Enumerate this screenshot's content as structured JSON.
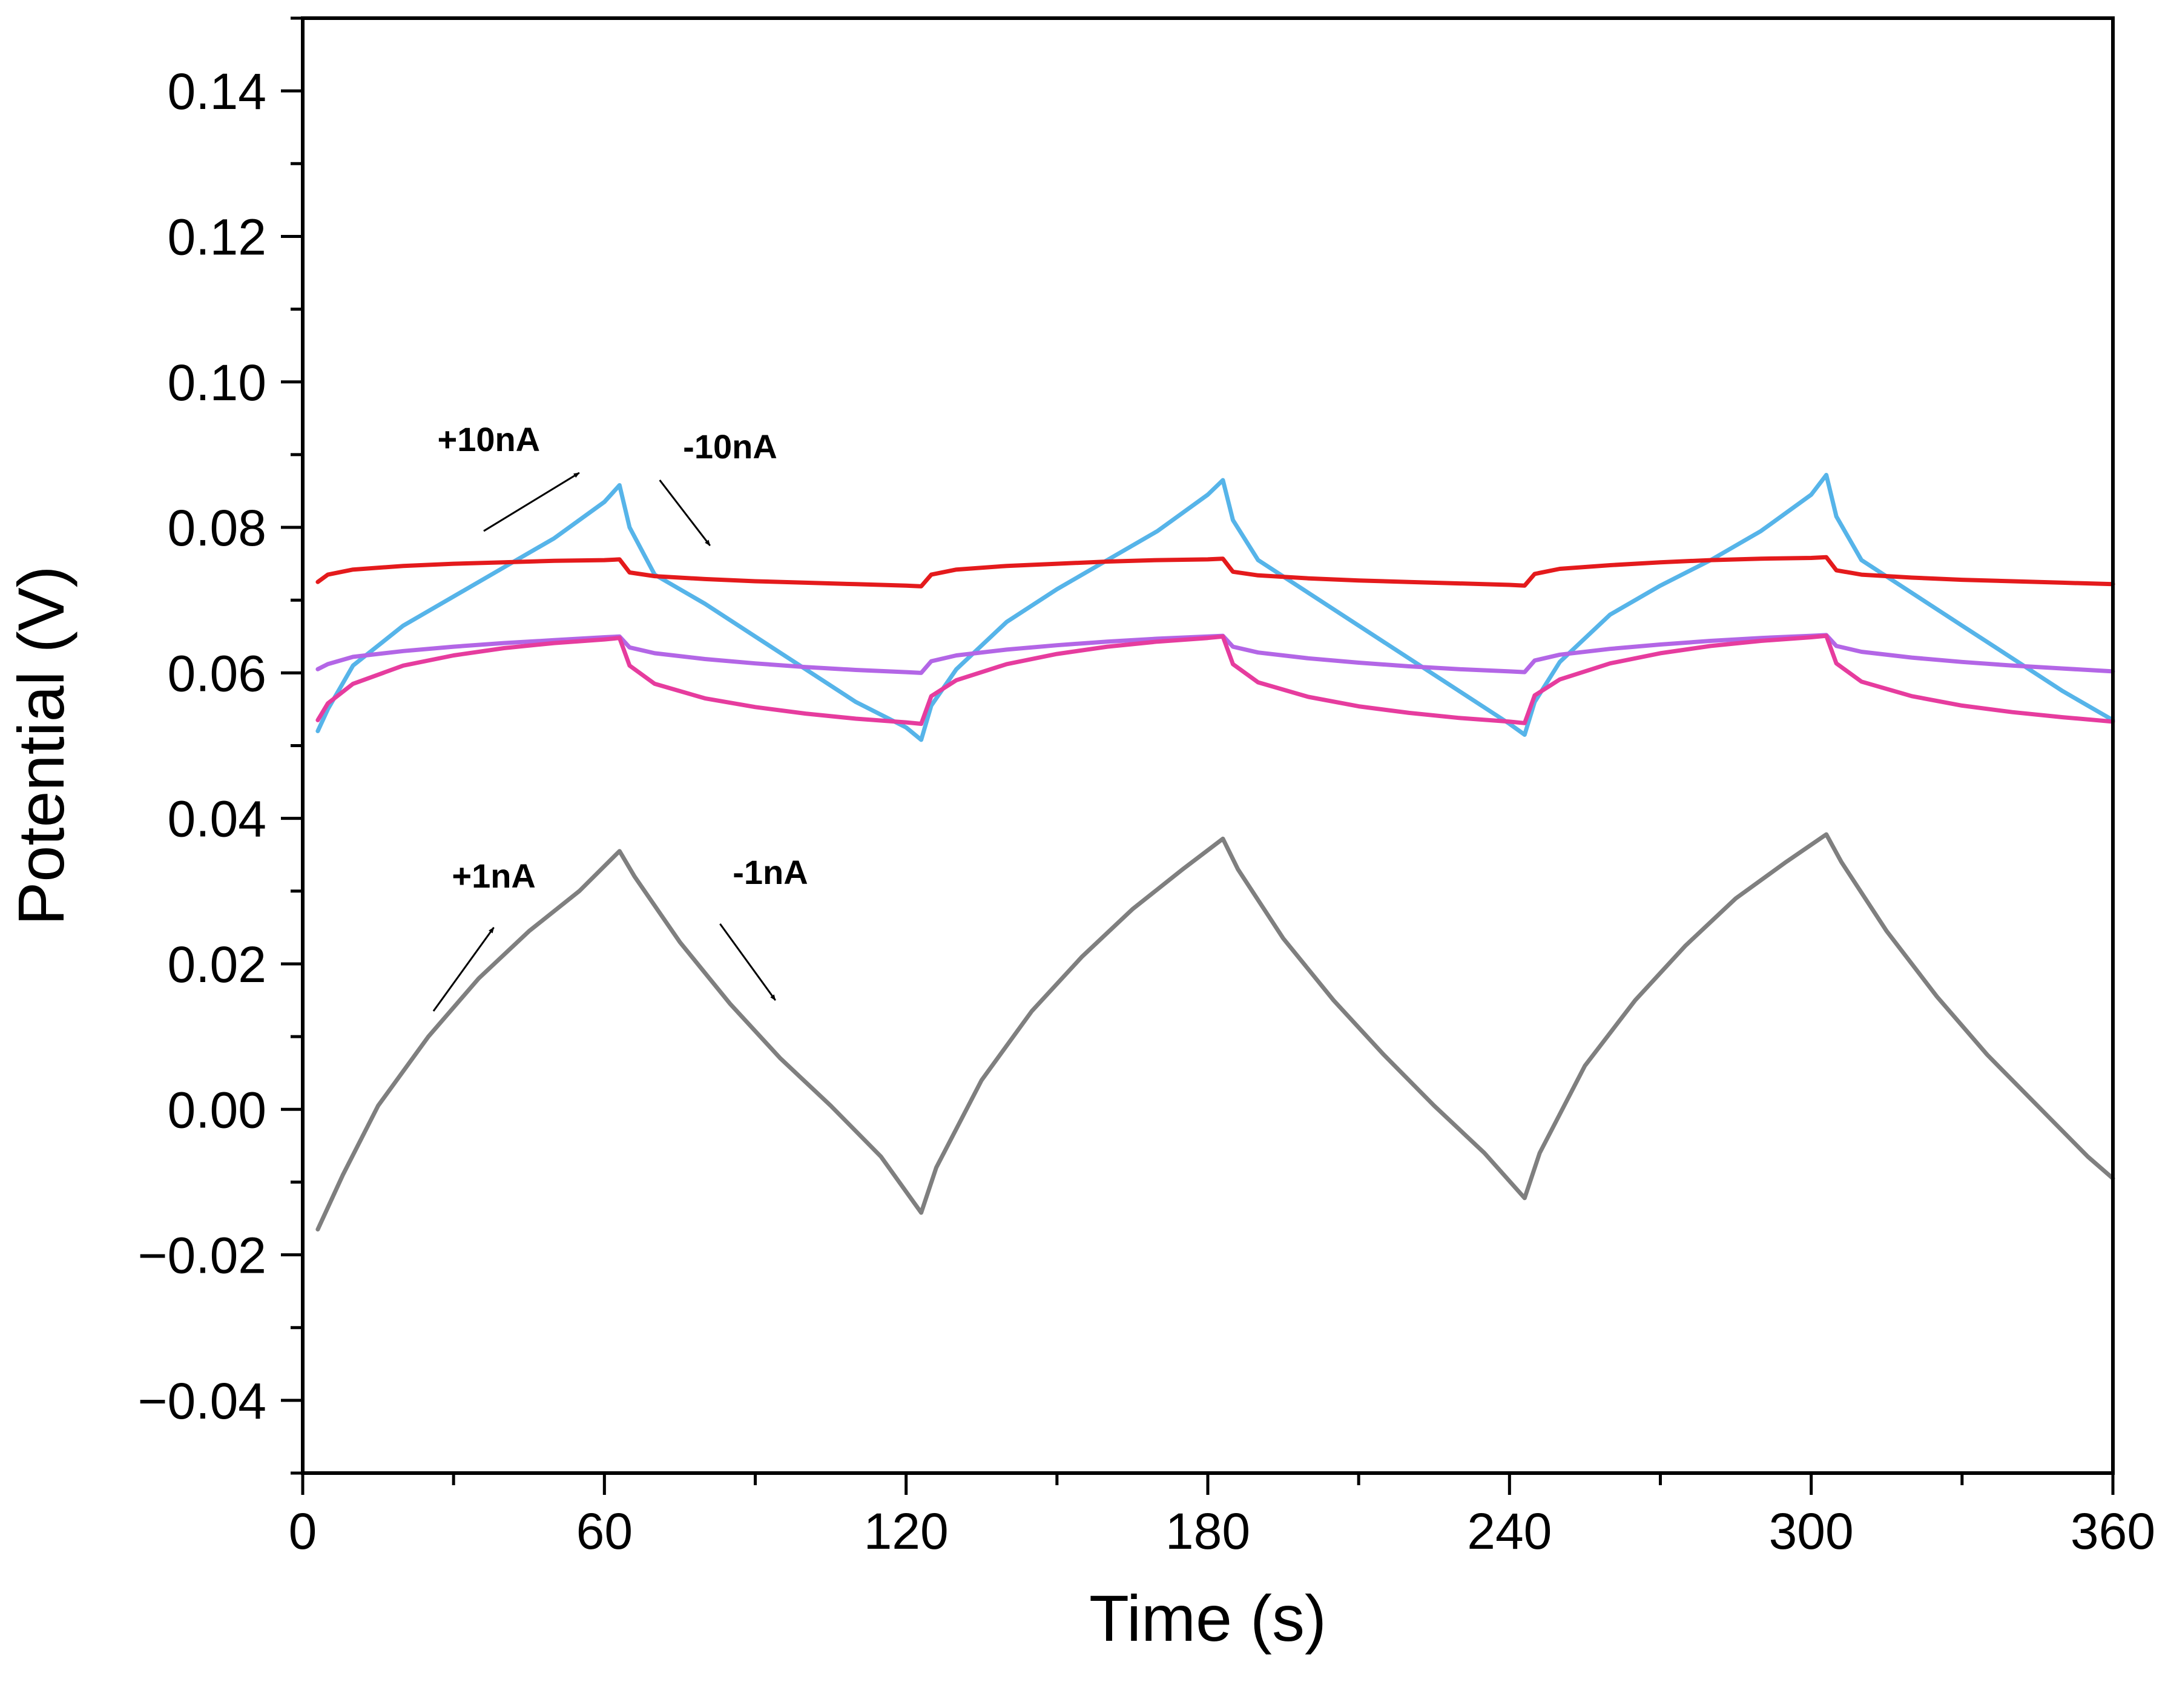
{
  "chart_data": {
    "type": "line",
    "title": "",
    "xlabel": "Time (s)",
    "ylabel": "Potential (V)",
    "xlim": [
      0,
      360
    ],
    "ylim": [
      -0.05,
      0.15
    ],
    "xticks": [
      0,
      60,
      120,
      180,
      240,
      300,
      360
    ],
    "xtick_labels": [
      "0",
      "60",
      "120",
      "180",
      "240",
      "300",
      "360"
    ],
    "yticks": [
      -0.04,
      -0.02,
      0.0,
      0.02,
      0.04,
      0.06,
      0.08,
      0.1,
      0.12,
      0.14
    ],
    "ytick_labels": [
      "−0.04",
      "−0.02",
      "0.00",
      "0.02",
      "0.04",
      "0.06",
      "0.08",
      "0.10",
      "0.12",
      "0.14"
    ],
    "grid": false,
    "series": [
      {
        "name": "grey",
        "color": "#7f7f7f",
        "x": [
          3,
          8,
          15,
          25,
          35,
          45,
          55,
          63,
          66,
          75,
          85,
          95,
          105,
          115,
          123,
          126,
          135,
          145,
          155,
          165,
          175,
          183,
          186,
          195,
          205,
          215,
          225,
          235,
          243,
          246,
          255,
          265,
          275,
          285,
          295,
          303,
          306,
          315,
          325,
          335,
          345,
          355,
          360
        ],
        "y": [
          -0.0165,
          -0.009,
          0.0005,
          0.01,
          0.018,
          0.0245,
          0.03,
          0.0355,
          0.032,
          0.023,
          0.0145,
          0.007,
          0.0005,
          -0.0065,
          -0.0142,
          -0.008,
          0.004,
          0.0135,
          0.021,
          0.0275,
          0.033,
          0.0372,
          0.033,
          0.0235,
          0.015,
          0.0075,
          0.0005,
          -0.006,
          -0.0122,
          -0.006,
          0.006,
          0.015,
          0.0225,
          0.029,
          0.034,
          0.0378,
          0.034,
          0.0245,
          0.0155,
          0.0075,
          0.0005,
          -0.0065,
          -0.0095
        ]
      },
      {
        "name": "blue",
        "color": "#56b4e9",
        "x": [
          3,
          5,
          10,
          20,
          30,
          40,
          50,
          60,
          63,
          65,
          70,
          80,
          90,
          100,
          110,
          120,
          123,
          125,
          130,
          140,
          150,
          160,
          170,
          180,
          183,
          185,
          190,
          200,
          210,
          220,
          230,
          240,
          243,
          245,
          250,
          260,
          270,
          280,
          290,
          300,
          303,
          305,
          310,
          320,
          330,
          340,
          350,
          360
        ],
        "y": [
          0.052,
          0.055,
          0.061,
          0.0665,
          0.0705,
          0.0745,
          0.0785,
          0.0835,
          0.0858,
          0.08,
          0.0735,
          0.0695,
          0.065,
          0.0605,
          0.056,
          0.0525,
          0.0508,
          0.0555,
          0.0605,
          0.067,
          0.0715,
          0.0755,
          0.0795,
          0.0845,
          0.0865,
          0.081,
          0.0755,
          0.071,
          0.0665,
          0.062,
          0.0575,
          0.053,
          0.0515,
          0.056,
          0.0615,
          0.068,
          0.072,
          0.0755,
          0.0795,
          0.0845,
          0.0872,
          0.0815,
          0.0755,
          0.071,
          0.0665,
          0.062,
          0.0575,
          0.0535
        ]
      },
      {
        "name": "red",
        "color": "#e41a1c",
        "x": [
          3,
          5,
          10,
          20,
          30,
          40,
          50,
          60,
          63,
          65,
          70,
          80,
          90,
          100,
          110,
          120,
          123,
          125,
          130,
          140,
          150,
          160,
          170,
          180,
          183,
          185,
          190,
          200,
          210,
          220,
          230,
          240,
          243,
          245,
          250,
          260,
          270,
          280,
          290,
          300,
          303,
          305,
          310,
          320,
          330,
          340,
          350,
          360
        ],
        "y": [
          0.0725,
          0.0735,
          0.0742,
          0.0747,
          0.075,
          0.0752,
          0.0754,
          0.0755,
          0.0756,
          0.0738,
          0.0733,
          0.0729,
          0.0726,
          0.0724,
          0.0722,
          0.072,
          0.0719,
          0.0735,
          0.0742,
          0.0747,
          0.075,
          0.0753,
          0.0755,
          0.0756,
          0.0757,
          0.0739,
          0.0734,
          0.073,
          0.0727,
          0.0725,
          0.0723,
          0.0721,
          0.072,
          0.0736,
          0.0743,
          0.0748,
          0.0752,
          0.0755,
          0.0757,
          0.0758,
          0.0759,
          0.0741,
          0.0735,
          0.0731,
          0.0728,
          0.0726,
          0.0724,
          0.0722
        ]
      },
      {
        "name": "purple",
        "color": "#b366e6",
        "x": [
          3,
          5,
          10,
          20,
          30,
          40,
          50,
          60,
          63,
          65,
          70,
          80,
          90,
          100,
          110,
          120,
          123,
          125,
          130,
          140,
          150,
          160,
          170,
          180,
          183,
          185,
          190,
          200,
          210,
          220,
          230,
          240,
          243,
          245,
          250,
          260,
          270,
          280,
          290,
          300,
          303,
          305,
          310,
          320,
          330,
          340,
          350,
          360
        ],
        "y": [
          0.0605,
          0.0612,
          0.0622,
          0.063,
          0.0636,
          0.0641,
          0.0645,
          0.0649,
          0.065,
          0.0635,
          0.0627,
          0.0619,
          0.0613,
          0.0608,
          0.0604,
          0.0601,
          0.06,
          0.0616,
          0.0624,
          0.0632,
          0.0638,
          0.0643,
          0.0647,
          0.065,
          0.0651,
          0.0636,
          0.0628,
          0.062,
          0.0614,
          0.0609,
          0.0605,
          0.0602,
          0.0601,
          0.0617,
          0.0625,
          0.0633,
          0.0639,
          0.0644,
          0.0648,
          0.0651,
          0.0652,
          0.0637,
          0.0629,
          0.0621,
          0.0615,
          0.061,
          0.0606,
          0.0602
        ]
      },
      {
        "name": "pink",
        "color": "#e63c9e",
        "x": [
          3,
          5,
          10,
          20,
          30,
          40,
          50,
          60,
          63,
          65,
          70,
          80,
          90,
          100,
          110,
          120,
          123,
          125,
          130,
          140,
          150,
          160,
          170,
          180,
          183,
          185,
          190,
          200,
          210,
          220,
          230,
          240,
          243,
          245,
          250,
          260,
          270,
          280,
          290,
          300,
          303,
          305,
          310,
          320,
          330,
          340,
          350,
          360
        ],
        "y": [
          0.0535,
          0.0558,
          0.0585,
          0.061,
          0.0624,
          0.0634,
          0.0641,
          0.0646,
          0.0648,
          0.061,
          0.0585,
          0.0565,
          0.0553,
          0.0544,
          0.0537,
          0.0532,
          0.053,
          0.0568,
          0.059,
          0.0612,
          0.0626,
          0.0636,
          0.0643,
          0.0648,
          0.065,
          0.0612,
          0.0587,
          0.0567,
          0.0554,
          0.0545,
          0.0538,
          0.0533,
          0.0531,
          0.0569,
          0.0591,
          0.0613,
          0.0627,
          0.0637,
          0.0644,
          0.0649,
          0.0651,
          0.0613,
          0.0588,
          0.0568,
          0.0555,
          0.0546,
          0.0539,
          0.0533
        ]
      }
    ],
    "annotations": [
      {
        "text": "+10nA",
        "x": 37,
        "y": 0.0905,
        "arrow": {
          "from": [
            36,
            0.0795
          ],
          "to": [
            55,
            0.0875
          ]
        }
      },
      {
        "text": "-10nA",
        "x": 85,
        "y": 0.0895,
        "arrow": {
          "from": [
            71,
            0.0865
          ],
          "to": [
            81,
            0.0775
          ]
        }
      },
      {
        "text": "+1nA",
        "x": 38,
        "y": 0.0305,
        "arrow": {
          "from": [
            26,
            0.0135
          ],
          "to": [
            38,
            0.025
          ]
        }
      },
      {
        "text": "-1nA",
        "x": 93,
        "y": 0.031,
        "arrow": {
          "from": [
            83,
            0.0255
          ],
          "to": [
            94,
            0.015
          ]
        }
      }
    ]
  }
}
